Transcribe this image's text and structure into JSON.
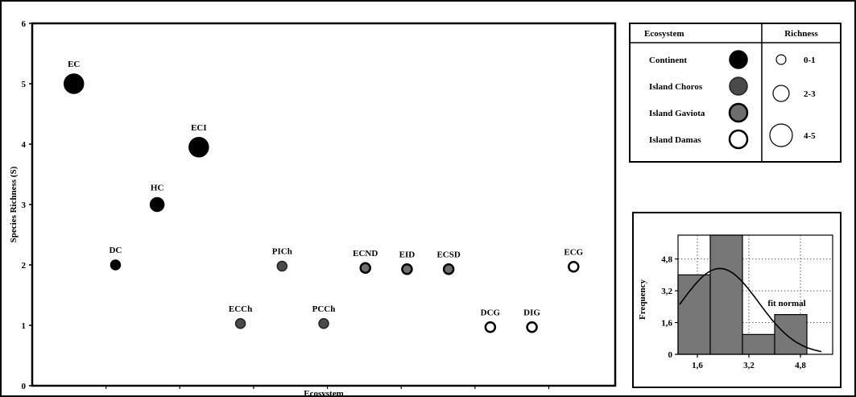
{
  "colors": {
    "continent": "#000000",
    "island_choros": "#4a4a4a",
    "island_gaviota": "#6e6e6e",
    "island_damas": "#ffffff",
    "histogram_bar": "#777777"
  },
  "chart_data": [
    {
      "type": "scatter",
      "title": "",
      "xlabel": "Ecosystem",
      "ylabel": "Species Richness (S)",
      "ylim": [
        0,
        6
      ],
      "yticks": [
        "0",
        "1",
        "2",
        "3",
        "4",
        "5",
        "6"
      ],
      "grid": false,
      "points": [
        {
          "label": "EC",
          "group": "Continent",
          "y": 5
        },
        {
          "label": "DC",
          "group": "Continent",
          "y": 2
        },
        {
          "label": "HC",
          "group": "Continent",
          "y": 3
        },
        {
          "label": "ECI",
          "group": "Continent",
          "y": 3.95
        },
        {
          "label": "ECCh",
          "group": "Island Choros",
          "y": 1.03
        },
        {
          "label": "PICh",
          "group": "Island Choros",
          "y": 1.98
        },
        {
          "label": "PCCh",
          "group": "Island Choros",
          "y": 1.03
        },
        {
          "label": "ECND",
          "group": "Island Gaviota",
          "y": 1.95
        },
        {
          "label": "EID",
          "group": "Island Gaviota",
          "y": 1.93
        },
        {
          "label": "ECSD",
          "group": "Island Gaviota",
          "y": 1.93
        },
        {
          "label": "DCG",
          "group": "Island Damas",
          "y": 0.97
        },
        {
          "label": "DIG",
          "group": "Island Damas",
          "y": 0.97
        },
        {
          "label": "ECG",
          "group": "Island Damas",
          "y": 1.97
        }
      ],
      "legend": {
        "position": "top-right",
        "ecosystem_header": "Ecosystem",
        "richness_header": "Richness",
        "ecosystems": [
          "Continent",
          "Island Choros",
          "Island Gaviota",
          "Island Damas"
        ],
        "richness_classes": [
          "0-1",
          "2-3",
          "4-5"
        ]
      }
    },
    {
      "type": "bar",
      "title": "",
      "xlabel": "",
      "ylabel": "Frequency",
      "annotation": "fit normal",
      "bins": [
        [
          1.0,
          2.0
        ],
        [
          2.0,
          3.0
        ],
        [
          3.0,
          4.0
        ],
        [
          4.0,
          5.0
        ]
      ],
      "values": [
        4,
        6,
        1,
        2
      ],
      "xticks": [
        "1,6",
        "3,2",
        "4,8"
      ],
      "xtick_values": [
        1.6,
        3.2,
        4.8
      ],
      "yticks": [
        "0",
        "1,6",
        "3,2",
        "4,8"
      ],
      "ytick_values": [
        0,
        1.6,
        3.2,
        4.8
      ],
      "xlim": [
        1.0,
        5.8
      ],
      "ylim": [
        0,
        6
      ],
      "fit_curve": {
        "mean": 2.3,
        "sd": 1.2,
        "n": 13,
        "bin_width": 1.0
      },
      "grid": true
    }
  ]
}
